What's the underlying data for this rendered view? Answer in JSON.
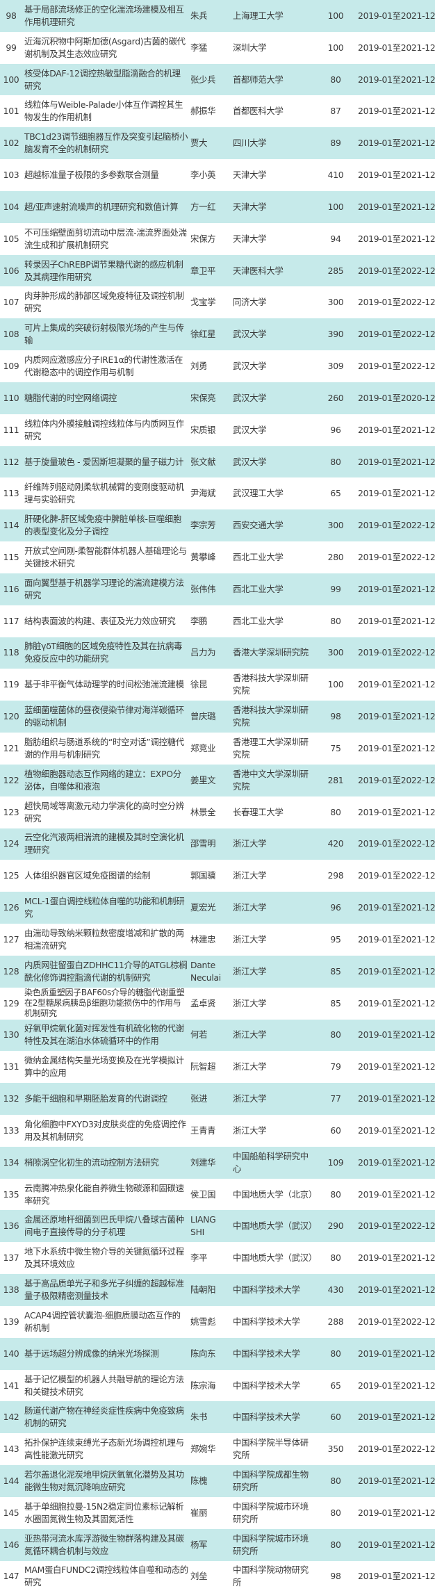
{
  "colors": {
    "row_alt": "#c6eaea",
    "row": "#ffffff",
    "text": "#3a3a3a"
  },
  "rows": [
    {
      "num": "98",
      "title": "基于局部流场修正的空化湍流场建模及相互作用机理研究",
      "leader": "朱兵",
      "org": "上海理工大学",
      "amount": "100",
      "period": "2019-01至2021-12"
    },
    {
      "num": "99",
      "title": "近海沉积物中阿斯加德(Asgard)古菌的碳代谢机制及其生态效应研究",
      "leader": "李猛",
      "org": "深圳大学",
      "amount": "100",
      "period": "2019-01至2021-12"
    },
    {
      "num": "100",
      "title": "核受体DAF-12调控热敏型脂滴融合的机理研究",
      "leader": "张少兵",
      "org": "首都师范大学",
      "amount": "80",
      "period": "2019-01至2021-12"
    },
    {
      "num": "101",
      "title": "线粒体与Weible-Palade小体互作调控其生物发生的作用机制",
      "leader": "郝振华",
      "org": "首都医科大学",
      "amount": "87",
      "period": "2019-01至2021-12"
    },
    {
      "num": "102",
      "title": "TBC1d23调节细胞器互作及突变引起脑桥小脑发育不全的机制研究",
      "leader": "贾大",
      "org": "四川大学",
      "amount": "89",
      "period": "2019-01至2021-12"
    },
    {
      "num": "103",
      "title": "超越标准量子极限的多参数联合测量",
      "leader": "李小英",
      "org": "天津大学",
      "amount": "410",
      "period": "2019-01至2021-12"
    },
    {
      "num": "104",
      "title": "超/亚声速射流噪声的机理研究和数值计算",
      "leader": "方一红",
      "org": "天津大学",
      "amount": "100",
      "period": "2019-01至2021-12"
    },
    {
      "num": "105",
      "title": "不可压缩壁面剪切流动中层流-湍流界面处湍流生成和扩展机制研究",
      "leader": "宋保方",
      "org": "天津大学",
      "amount": "94",
      "period": "2019-01至2021-12"
    },
    {
      "num": "106",
      "title": "转录因子ChREBP调节果糖代谢的感应机制及其病理作用研究",
      "leader": "章卫平",
      "org": "天津医科大学",
      "amount": "285",
      "period": "2019-01至2022-12"
    },
    {
      "num": "107",
      "title": "肉芽肿形成的肺部区域免疫特征及调控机制研究",
      "leader": "戈宝学",
      "org": "同济大学",
      "amount": "300",
      "period": "2019-01至2022-12"
    },
    {
      "num": "108",
      "title": "可片上集成的突破衍射极限光场的产生与传输",
      "leader": "徐红星",
      "org": "武汉大学",
      "amount": "390",
      "period": "2019-01至2022-12"
    },
    {
      "num": "109",
      "title": "内质网应激感应分子IRE1α的代谢性激活在代谢稳态中的调控作用与机制",
      "leader": "刘勇",
      "org": "武汉大学",
      "amount": "309",
      "period": "2019-01至2022-12"
    },
    {
      "num": "110",
      "title": "糖脂代谢的时空网络调控",
      "leader": "宋保亮",
      "org": "武汉大学",
      "amount": "260",
      "period": "2019-01至2020-12"
    },
    {
      "num": "111",
      "title": "线粒体内外膜接触调控线粒体与内质网互作研究",
      "leader": "宋质银",
      "org": "武汉大学",
      "amount": "96",
      "period": "2019-01至2021-12"
    },
    {
      "num": "112",
      "title": "基于旋量玻色 - 爱因斯坦凝聚的量子磁力计",
      "leader": "张文献",
      "org": "武汉大学",
      "amount": "80",
      "period": "2019-01至2021-12"
    },
    {
      "num": "113",
      "title": "纤维阵列驱动刚柔软机械臂的变刚度驱动机理与实验研究",
      "leader": "尹海斌",
      "org": "武汉理工大学",
      "amount": "65",
      "period": "2019-01至2021-12"
    },
    {
      "num": "114",
      "title": "肝硬化脾-肝区域免疫中脾脏单核-巨噬细胞的表型变化及分子调控",
      "leader": "李宗芳",
      "org": "西安交通大学",
      "amount": "300",
      "period": "2019-01至2022-12"
    },
    {
      "num": "115",
      "title": "开放式空间刚-柔智能群体机器人基础理论与关键技术研究",
      "leader": "黄攀峰",
      "org": "西北工业大学",
      "amount": "280",
      "period": "2019-01至2022-12"
    },
    {
      "num": "116",
      "title": "面向翼型基于机器学习理论的湍流建模方法研究",
      "leader": "张伟伟",
      "org": "西北工业大学",
      "amount": "99",
      "period": "2019-01至2021-12"
    },
    {
      "num": "117",
      "title": "结构表面波的构建、表征及光力效应研究",
      "leader": "李鹏",
      "org": "西北工业大学",
      "amount": "80",
      "period": "2019-01至2021-12"
    },
    {
      "num": "118",
      "title": "肺脏γδT细胞的区域免疫特性及其在抗病毒免疫反应中的功能研究",
      "leader": "吕力为",
      "org": "香港大学深圳研究院",
      "amount": "300",
      "period": "2019-01至2022-12"
    },
    {
      "num": "119",
      "title": "基于非平衡气体动理学的时间松弛湍流建模",
      "leader": "徐昆",
      "org": "香港科技大学深圳研究院",
      "amount": "100",
      "period": "2019-01至2021-12"
    },
    {
      "num": "120",
      "title": "蓝细菌噬菌体的昼夜侵染节律对海洋碳循环的驱动机制",
      "leader": "曾庆璐",
      "org": "香港科技大学深圳研究院",
      "amount": "98",
      "period": "2019-01至2021-12"
    },
    {
      "num": "121",
      "title": "脂肪组织与肠道系统的“时空对话”调控糖代谢的作用与机制研究",
      "leader": "郑竞业",
      "org": "香港理工大学深圳研究院",
      "amount": "75",
      "period": "2019-01至2021-12"
    },
    {
      "num": "122",
      "title": "植物细胞器动态互作网络的建立：EXPO分泌体，自噬体和液泡",
      "leader": "姜里文",
      "org": "香港中文大学深圳研究院",
      "amount": "281",
      "period": "2019-01至2022-12"
    },
    {
      "num": "123",
      "title": "超快局域等离激元动力学演化的高时空分辨研究",
      "leader": "林景全",
      "org": "长春理工大学",
      "amount": "80",
      "period": "2019-01至2021-12"
    },
    {
      "num": "124",
      "title": "云空化汽液两相湍流的建模及其时空演化机理研究",
      "leader": "邵雪明",
      "org": "浙江大学",
      "amount": "420",
      "period": "2019-01至2022-12"
    },
    {
      "num": "125",
      "title": "人体组织器官区域免疫图谱的绘制",
      "leader": "郭国骥",
      "org": "浙江大学",
      "amount": "298",
      "period": "2019-01至2022-12"
    },
    {
      "num": "126",
      "title": "MCL-1蛋白调控线粒体自噬的功能和机制研究",
      "leader": "夏宏光",
      "org": "浙江大学",
      "amount": "96",
      "period": "2019-01至2021-12"
    },
    {
      "num": "127",
      "title": "由湍动导致纳米颗粒数密度增减和扩散的两相湍流研究",
      "leader": "林建忠",
      "org": "浙江大学",
      "amount": "95",
      "period": "2019-01至2021-12"
    },
    {
      "num": "128",
      "title": "内质网驻留蛋白ZDHHC11介导的ATGL棕榈酰化修饰调控脂滴代谢的机制研究",
      "leader": "Dante Neculai",
      "org": "浙江大学",
      "amount": "85",
      "period": "2019-01至2021-12"
    },
    {
      "num": "129",
      "title": "染色质重塑因子BAF60s介导的糖脂代谢重塑在2型糖尿病胰岛β细胞功能损伤中的作用与机制研究",
      "leader": "孟卓贤",
      "org": "浙江大学",
      "amount": "85",
      "period": "2019-01至2021-12"
    },
    {
      "num": "130",
      "title": "好氧甲烷氧化菌对挥发性有机硫化物的代谢特性及其在湖泊水体硫循环中的作用",
      "leader": "何若",
      "org": "浙江大学",
      "amount": "80",
      "period": "2019-01至2021-12"
    },
    {
      "num": "131",
      "title": "微纳金属结构矢量光场变换及在光学模拟计算中的应用",
      "leader": "阮智超",
      "org": "浙江大学",
      "amount": "79",
      "period": "2019-01至2021-12"
    },
    {
      "num": "132",
      "title": "多能干细胞和早期胚胎发育的代谢调控",
      "leader": "张进",
      "org": "浙江大学",
      "amount": "77",
      "period": "2019-01至2021-12"
    },
    {
      "num": "133",
      "title": "角化细胞中FXYD3对皮肤炎症的免疫调控作用及其机制研究",
      "leader": "王青青",
      "org": "浙江大学",
      "amount": "60",
      "period": "2019-01至2021-12"
    },
    {
      "num": "134",
      "title": "梢隙涡空化初生的流动控制方法研究",
      "leader": "刘建华",
      "org": "中国船舶科学研究中心",
      "amount": "109",
      "period": "2019-01至2021-12"
    },
    {
      "num": "135",
      "title": "云南腾冲热泉化能自养微生物碳源和固碳速率研究",
      "leader": "侯卫国",
      "org": "中国地质大学（北京）",
      "amount": "80",
      "period": "2019-01至2021-12"
    },
    {
      "num": "136",
      "title": "金属还原地杆细菌到巴氏甲烷八叠球古菌种间电子直接传导的分子机理",
      "leader": "LIANG SHI",
      "org": "中国地质大学（武汉）",
      "amount": "290",
      "period": "2019-01至2022-12"
    },
    {
      "num": "137",
      "title": "地下水系统中微生物介导的关键氮循环过程及其环境效应",
      "leader": "李平",
      "org": "中国地质大学（武汉）",
      "amount": "80",
      "period": "2019-01至2021-12"
    },
    {
      "num": "138",
      "title": "基于高品质单光子和多光子纠缠的超越标准量子极限精密测量技术",
      "leader": "陆朝阳",
      "org": "中国科学技术大学",
      "amount": "430",
      "period": "2019-01至2021-12"
    },
    {
      "num": "139",
      "title": "ACAP4调控管状囊泡-细胞质膜动态互作的新机制",
      "leader": "姚雪彪",
      "org": "中国科学技术大学",
      "amount": "288",
      "period": "2019-01至2022-12"
    },
    {
      "num": "140",
      "title": "基于远场超分辨成像的纳米光场探测",
      "leader": "陈向东",
      "org": "中国科学技术大学",
      "amount": "80",
      "period": "2019-01至2021-12"
    },
    {
      "num": "141",
      "title": "基于记忆模型的机器人共融导航的理论方法和关键技术研究",
      "leader": "陈宗海",
      "org": "中国科学技术大学",
      "amount": "65",
      "period": "2019-01至2021-12"
    },
    {
      "num": "142",
      "title": "肠道代谢产物在神经炎症性疾病中免疫致病机制的研究",
      "leader": "朱书",
      "org": "中国科学技术大学",
      "amount": "60",
      "period": "2019-01至2021-12"
    },
    {
      "num": "143",
      "title": "拓扑保护连续束缚光子态新光场调控机理与高性能激光研究",
      "leader": "郑婉华",
      "org": "中国科学院半导体研究所",
      "amount": "350",
      "period": "2019-01至2022-12"
    },
    {
      "num": "144",
      "title": "若尔盖退化泥炭地甲烷厌氧氧化潜势及其功能微生物对氮沉降响应研究",
      "leader": "陈槐",
      "org": "中国科学院成都生物研究所",
      "amount": "80",
      "period": "2019-01至2021-12"
    },
    {
      "num": "145",
      "title": "基于单细胞拉曼-15N2稳定同位素标记解析水圈固氮微生物及其固氮活性",
      "leader": "崔丽",
      "org": "中国科学院城市环境研究所",
      "amount": "80",
      "period": "2019-01至2021-12"
    },
    {
      "num": "146",
      "title": "亚热带河流水库浮游微生物群落构建及其碳氮循环耦合机制与效应",
      "leader": "杨军",
      "org": "中国科学院城市环境研究所",
      "amount": "80",
      "period": "2019-01至2021-12"
    },
    {
      "num": "147",
      "title": "MAM蛋白FUNDC2调控线粒体自噬和动态的研究",
      "leader": "刘垒",
      "org": "中国科学院动物研究所",
      "amount": "98",
      "period": "2019-01至2021-12"
    }
  ]
}
